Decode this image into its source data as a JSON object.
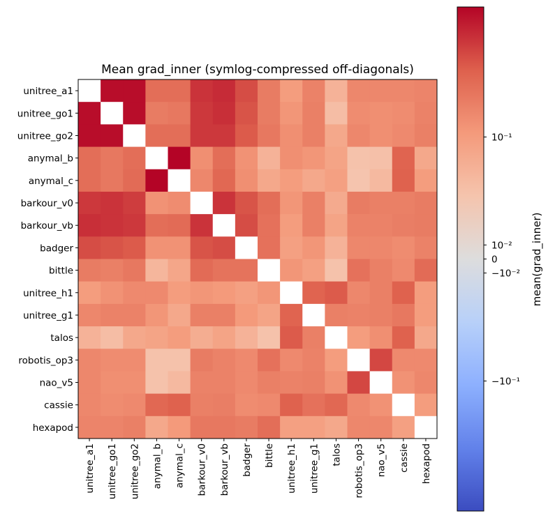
{
  "chart_data": {
    "type": "heatmap",
    "title": "Mean grad_inner (symlog-compressed off-diagonals)",
    "row_labels": [
      "unitree_a1",
      "unitree_go1",
      "unitree_go2",
      "anymal_b",
      "anymal_c",
      "barkour_v0",
      "barkour_vb",
      "badger",
      "bittle",
      "unitree_h1",
      "unitree_g1",
      "talos",
      "robotis_op3",
      "nao_v5",
      "cassie",
      "hexapod"
    ],
    "col_labels": [
      "unitree_a1",
      "unitree_go1",
      "unitree_go2",
      "anymal_b",
      "anymal_c",
      "barkour_v0",
      "barkour_vb",
      "badger",
      "bittle",
      "unitree_h1",
      "unitree_g1",
      "talos",
      "robotis_op3",
      "nao_v5",
      "cassie",
      "hexapod"
    ],
    "values": [
      [
        null,
        1.4,
        1.4,
        0.3,
        0.3,
        0.8,
        0.9,
        0.55,
        0.22,
        0.1,
        0.19,
        0.05,
        0.17,
        0.17,
        0.17,
        0.18
      ],
      [
        1.4,
        null,
        1.4,
        0.22,
        0.24,
        0.75,
        0.85,
        0.5,
        0.22,
        0.12,
        0.2,
        0.035,
        0.15,
        0.14,
        0.15,
        0.19
      ],
      [
        1.4,
        1.4,
        null,
        0.3,
        0.3,
        0.75,
        0.75,
        0.45,
        0.24,
        0.14,
        0.2,
        0.07,
        0.17,
        0.14,
        0.16,
        0.2
      ],
      [
        0.3,
        0.24,
        0.3,
        null,
        1.6,
        0.14,
        0.3,
        0.13,
        0.05,
        0.14,
        0.12,
        0.08,
        0.03,
        0.032,
        0.38,
        0.07
      ],
      [
        0.3,
        0.24,
        0.32,
        1.6,
        null,
        0.17,
        0.35,
        0.14,
        0.07,
        0.1,
        0.07,
        0.09,
        0.028,
        0.04,
        0.4,
        0.1
      ],
      [
        0.75,
        0.8,
        0.7,
        0.13,
        0.15,
        null,
        0.8,
        0.5,
        0.3,
        0.12,
        0.2,
        0.065,
        0.22,
        0.2,
        0.2,
        0.22
      ],
      [
        0.85,
        0.8,
        0.75,
        0.3,
        0.32,
        0.8,
        null,
        0.55,
        0.28,
        0.1,
        0.2,
        0.08,
        0.19,
        0.19,
        0.21,
        0.22
      ],
      [
        0.55,
        0.5,
        0.45,
        0.13,
        0.13,
        0.5,
        0.55,
        null,
        0.28,
        0.09,
        0.12,
        0.05,
        0.17,
        0.17,
        0.15,
        0.19
      ],
      [
        0.22,
        0.2,
        0.24,
        0.045,
        0.075,
        0.32,
        0.27,
        0.27,
        null,
        0.12,
        0.09,
        0.03,
        0.28,
        0.2,
        0.16,
        0.32
      ],
      [
        0.1,
        0.13,
        0.16,
        0.16,
        0.1,
        0.12,
        0.11,
        0.09,
        0.12,
        null,
        0.38,
        0.45,
        0.17,
        0.2,
        0.4,
        0.1
      ],
      [
        0.17,
        0.19,
        0.19,
        0.12,
        0.07,
        0.2,
        0.2,
        0.11,
        0.08,
        0.38,
        null,
        0.2,
        0.19,
        0.2,
        0.24,
        0.1
      ],
      [
        0.05,
        0.035,
        0.07,
        0.08,
        0.1,
        0.06,
        0.08,
        0.05,
        0.03,
        0.45,
        0.2,
        null,
        0.1,
        0.14,
        0.4,
        0.07
      ],
      [
        0.17,
        0.15,
        0.15,
        0.03,
        0.03,
        0.22,
        0.19,
        0.16,
        0.28,
        0.16,
        0.19,
        0.1,
        null,
        0.6,
        0.16,
        0.16
      ],
      [
        0.17,
        0.14,
        0.14,
        0.03,
        0.04,
        0.19,
        0.19,
        0.16,
        0.2,
        0.19,
        0.2,
        0.13,
        0.6,
        null,
        0.13,
        0.17
      ],
      [
        0.17,
        0.15,
        0.16,
        0.35,
        0.4,
        0.2,
        0.21,
        0.15,
        0.16,
        0.4,
        0.28,
        0.35,
        0.16,
        0.13,
        null,
        0.1
      ],
      [
        0.18,
        0.18,
        0.2,
        0.07,
        0.11,
        0.24,
        0.24,
        0.22,
        0.3,
        0.09,
        0.09,
        0.07,
        0.17,
        0.17,
        0.09,
        null
      ]
    ],
    "colormap": "coolwarm",
    "scale": "symlog",
    "linthresh": 0.01,
    "vmin": -1.6,
    "vmax": 1.6,
    "colorbar": {
      "label": "mean(grad_inner)",
      "ticks": [
        {
          "value": 0.1,
          "label": "10⁻¹"
        },
        {
          "value": 0.01,
          "label": "10⁻²"
        },
        {
          "value": 0,
          "label": "0"
        },
        {
          "value": -0.01,
          "label": "−10⁻²"
        },
        {
          "value": -0.1,
          "label": "−10⁻¹"
        }
      ]
    },
    "diagonal": "blank"
  }
}
